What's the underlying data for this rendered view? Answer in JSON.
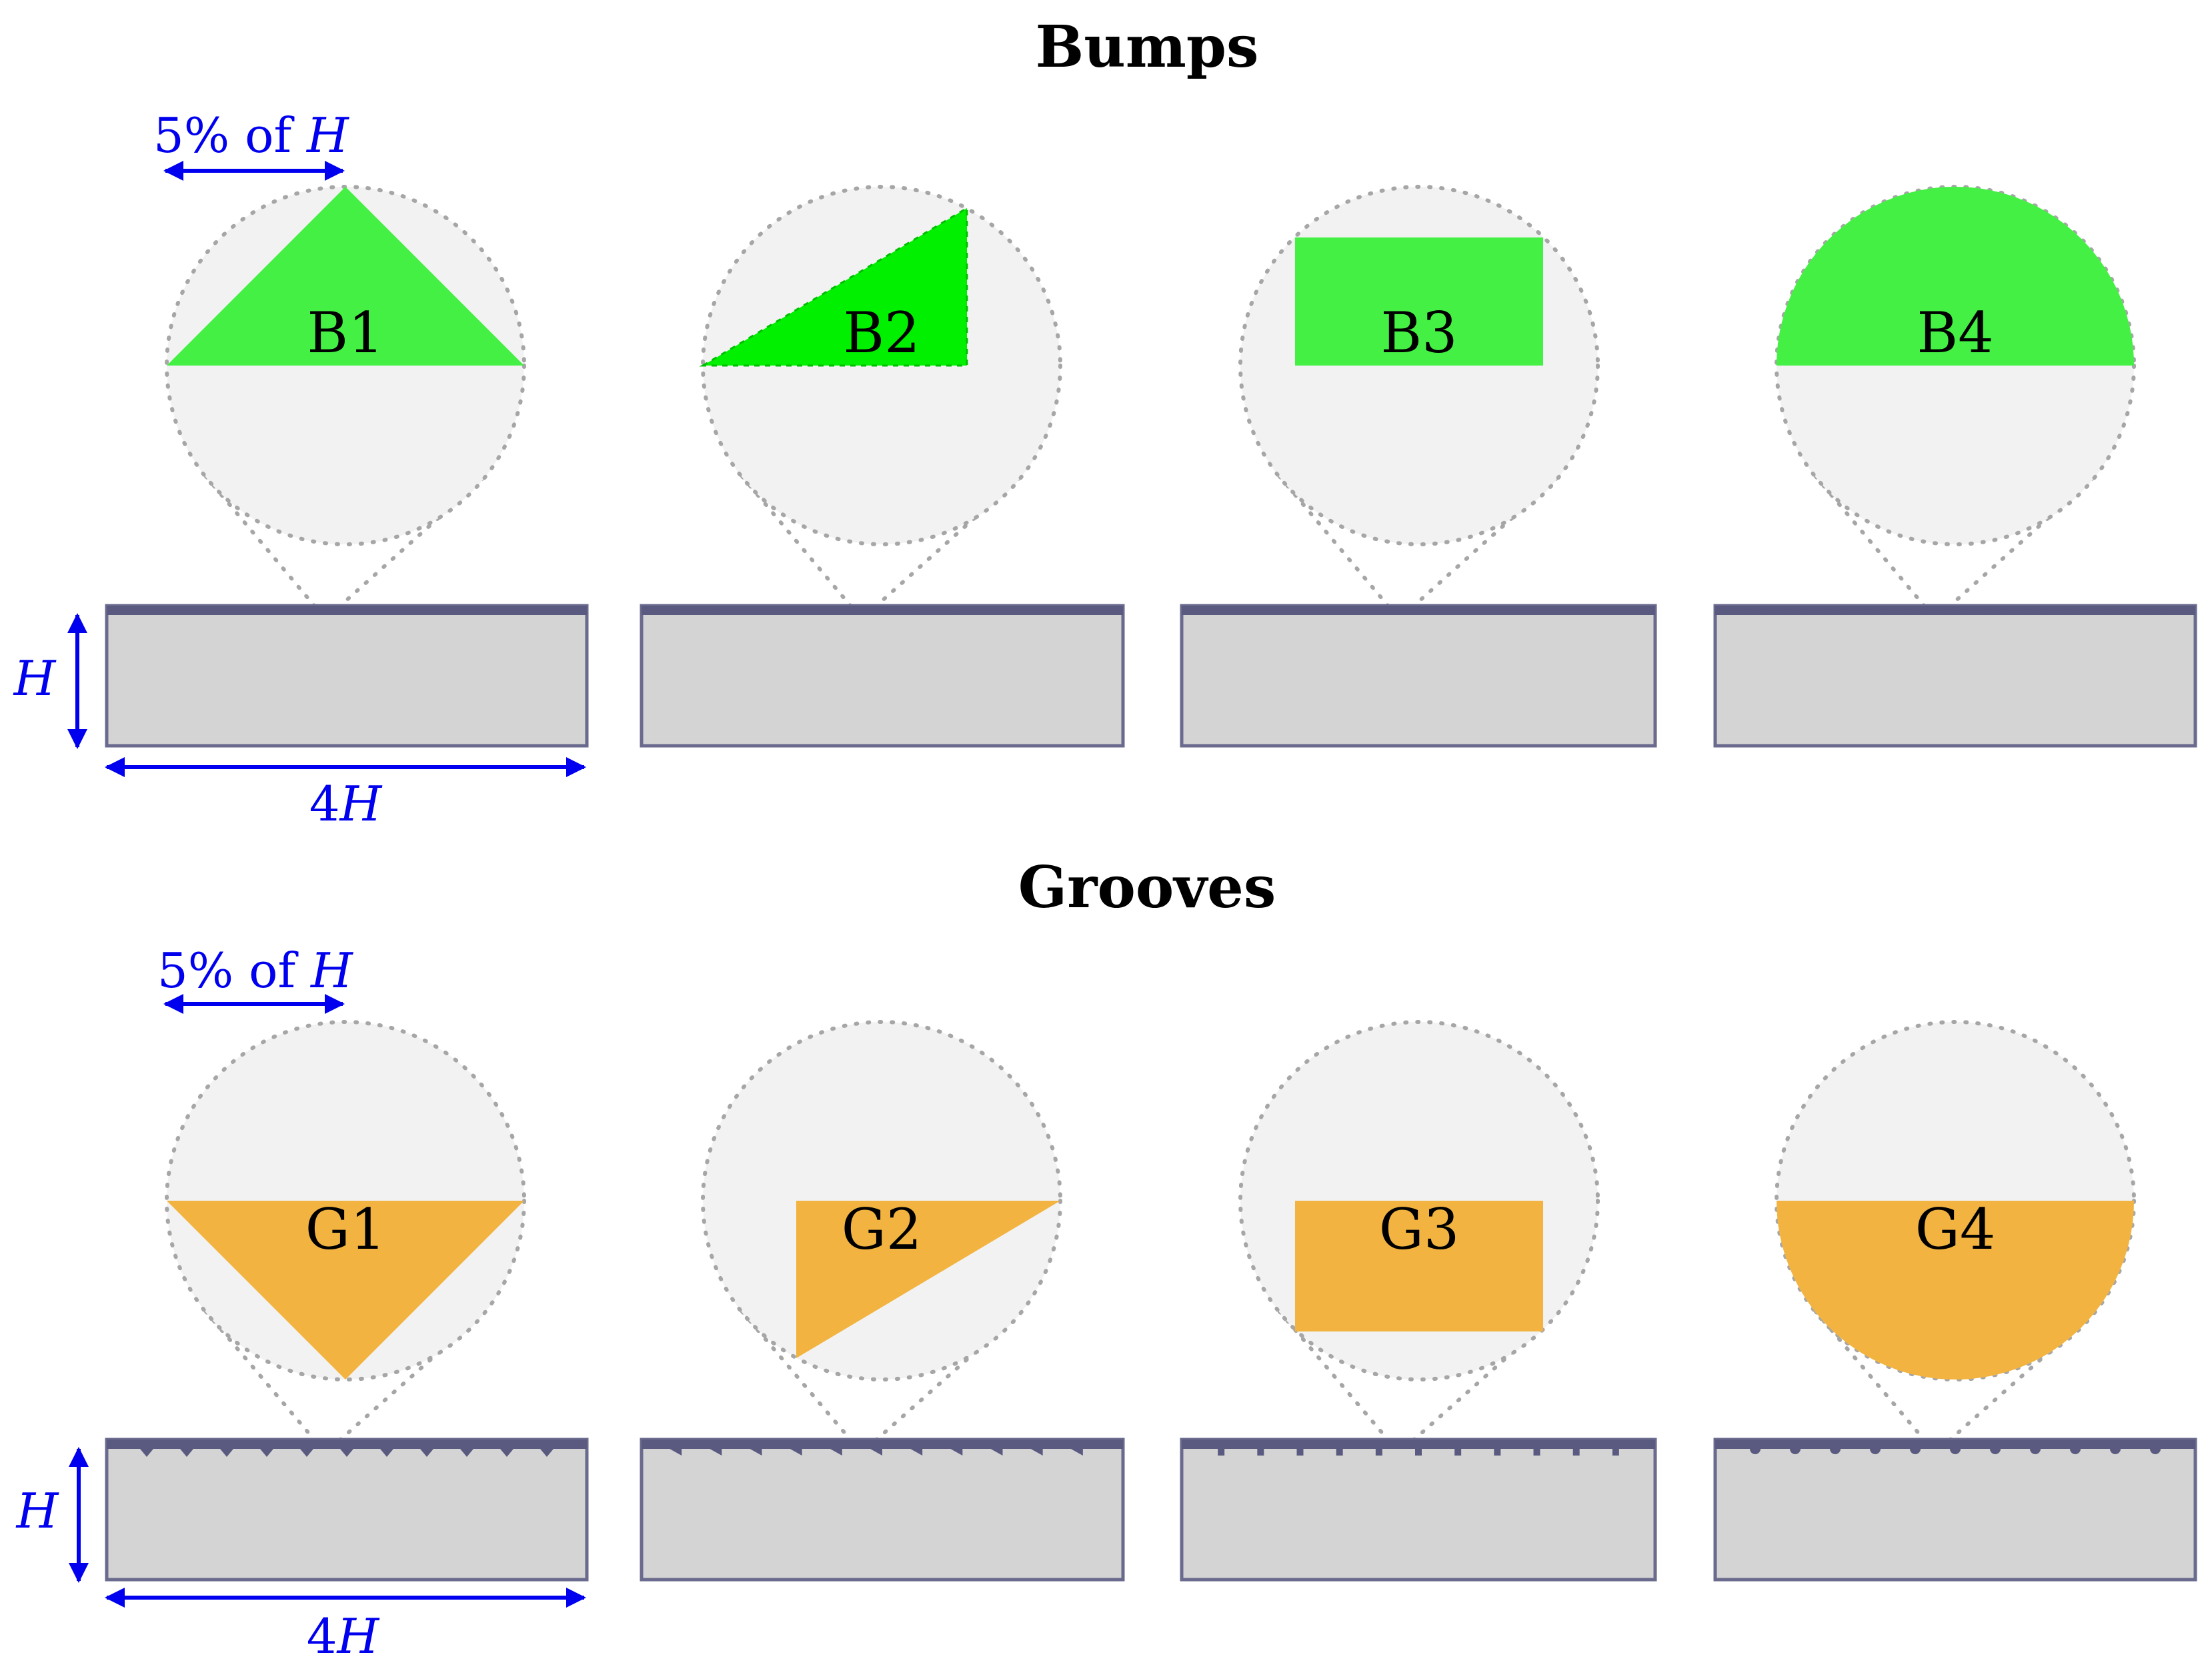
{
  "sections": [
    {
      "title": "Bumps",
      "kind": "bump",
      "shapes": [
        {
          "tag": "B1",
          "shape": "triangle"
        },
        {
          "tag": "B2",
          "shape": "right-triangle"
        },
        {
          "tag": "B3",
          "shape": "rectangle"
        },
        {
          "tag": "B4",
          "shape": "semicircle"
        }
      ]
    },
    {
      "title": "Grooves",
      "kind": "groove",
      "shapes": [
        {
          "tag": "G1",
          "shape": "triangle"
        },
        {
          "tag": "G2",
          "shape": "right-triangle"
        },
        {
          "tag": "G3",
          "shape": "rectangle"
        },
        {
          "tag": "G4",
          "shape": "semicircle"
        }
      ]
    }
  ],
  "dimensions": {
    "feature_size_prefix": "5% of",
    "feature_size_var": "H",
    "height_label": "H",
    "length_prefix": "4",
    "length_var": "H"
  },
  "colors": {
    "bump": "#44f044",
    "bump_b2": "#00f000",
    "groove": "#f2b340",
    "zoom_fill": "#f2f2f2",
    "plate_fill": "#d4d4d4",
    "plate_band": "#5a5a80",
    "dimension": "#0000ee"
  }
}
